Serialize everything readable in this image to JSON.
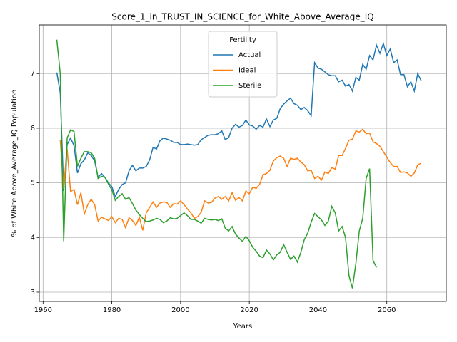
{
  "chart_data": {
    "type": "line",
    "title": "Score_1_in_TRUST_IN_SCIENCE_for_White_Above_Average_IQ",
    "x_label": "Years",
    "y_label": "% of White Above_Average_IQ Population",
    "x": [
      1964,
      1965,
      1966,
      1967,
      1968,
      1969,
      1970,
      1971,
      1972,
      1973,
      1974,
      1975,
      1976,
      1977,
      1978,
      1979,
      1980,
      1981,
      1982,
      1983,
      1984,
      1985,
      1986,
      1987,
      1988,
      1989,
      1990,
      1991,
      1992,
      1993,
      1994,
      1995,
      1996,
      1997,
      1998,
      1999,
      2000,
      2001,
      2002,
      2003,
      2004,
      2005,
      2006,
      2007,
      2008,
      2009,
      2010,
      2011,
      2012,
      2013,
      2014,
      2015,
      2016,
      2017,
      2018,
      2019,
      2020,
      2021,
      2022,
      2023,
      2024,
      2025,
      2026,
      2027,
      2028,
      2029,
      2030,
      2031,
      2032,
      2033,
      2034,
      2035,
      2036,
      2037,
      2038,
      2039,
      2040,
      2041,
      2042,
      2043,
      2044,
      2045,
      2046,
      2047,
      2048,
      2049,
      2050,
      2051,
      2052,
      2053,
      2054,
      2055,
      2056,
      2057,
      2058,
      2059,
      2060,
      2061,
      2062,
      2063,
      2064,
      2065,
      2066,
      2067,
      2068,
      2069,
      2070
    ],
    "series": [
      {
        "name": "Actual",
        "color": "#1f77b4",
        "values": [
          7.02,
          6.65,
          4.85,
          5.7,
          5.82,
          5.68,
          5.18,
          5.35,
          5.42,
          5.55,
          5.5,
          5.4,
          5.1,
          5.17,
          5.1,
          5.0,
          4.93,
          4.75,
          4.88,
          4.97,
          5.0,
          5.22,
          5.32,
          5.22,
          5.27,
          5.27,
          5.3,
          5.42,
          5.65,
          5.62,
          5.77,
          5.82,
          5.8,
          5.78,
          5.74,
          5.74,
          5.7,
          5.7,
          5.71,
          5.7,
          5.69,
          5.7,
          5.79,
          5.83,
          5.87,
          5.88,
          5.88,
          5.9,
          5.95,
          5.79,
          5.83,
          6.0,
          6.07,
          6.02,
          6.05,
          6.15,
          6.06,
          6.04,
          5.98,
          6.05,
          6.02,
          6.17,
          6.03,
          6.15,
          6.18,
          6.36,
          6.44,
          6.5,
          6.55,
          6.45,
          6.42,
          6.34,
          6.38,
          6.32,
          6.23,
          7.2,
          7.1,
          7.08,
          7.03,
          6.98,
          6.96,
          6.96,
          6.85,
          6.88,
          6.77,
          6.8,
          6.68,
          6.93,
          6.88,
          7.17,
          7.08,
          7.33,
          7.25,
          7.52,
          7.37,
          7.55,
          7.33,
          7.45,
          7.2,
          7.25,
          6.98,
          6.98,
          6.76,
          6.85,
          6.68,
          7.0,
          6.87
        ]
      },
      {
        "name": "Ideal",
        "color": "#ff7f0e",
        "values": [
          null,
          5.78,
          4.9,
          5.62,
          4.84,
          4.88,
          4.6,
          4.82,
          4.43,
          4.6,
          4.7,
          4.6,
          4.3,
          4.37,
          4.34,
          4.31,
          4.38,
          4.27,
          4.35,
          4.33,
          4.18,
          4.36,
          4.31,
          4.22,
          4.37,
          4.13,
          4.45,
          4.55,
          4.65,
          4.55,
          4.63,
          4.65,
          4.64,
          4.55,
          4.62,
          4.61,
          4.67,
          4.6,
          4.52,
          4.45,
          4.35,
          4.38,
          4.46,
          4.67,
          4.63,
          4.64,
          4.72,
          4.75,
          4.7,
          4.75,
          4.67,
          4.82,
          4.68,
          4.73,
          4.67,
          4.85,
          4.8,
          4.92,
          4.9,
          4.97,
          5.15,
          5.17,
          5.23,
          5.4,
          5.46,
          5.49,
          5.45,
          5.3,
          5.45,
          5.43,
          5.45,
          5.38,
          5.33,
          5.22,
          5.23,
          5.08,
          5.12,
          5.05,
          5.2,
          5.17,
          5.28,
          5.25,
          5.5,
          5.5,
          5.63,
          5.78,
          5.8,
          5.95,
          5.93,
          5.98,
          5.9,
          5.91,
          5.75,
          5.72,
          5.67,
          5.57,
          5.47,
          5.37,
          5.3,
          5.3,
          5.19,
          5.2,
          5.18,
          5.12,
          5.18,
          5.33,
          5.36
        ]
      },
      {
        "name": "Sterile",
        "color": "#2ca02c",
        "values": [
          7.62,
          7.0,
          3.93,
          5.82,
          5.97,
          5.94,
          5.3,
          5.45,
          5.57,
          5.57,
          5.55,
          5.45,
          5.08,
          5.12,
          5.1,
          4.98,
          4.87,
          4.68,
          4.75,
          4.8,
          4.7,
          4.73,
          4.62,
          4.5,
          4.42,
          4.35,
          4.29,
          4.3,
          4.32,
          4.35,
          4.33,
          4.27,
          4.3,
          4.36,
          4.34,
          4.35,
          4.4,
          4.45,
          4.4,
          4.33,
          4.33,
          4.3,
          4.26,
          4.35,
          4.33,
          4.32,
          4.33,
          4.31,
          4.34,
          4.17,
          4.12,
          4.2,
          4.06,
          3.99,
          3.93,
          4.02,
          3.94,
          3.82,
          3.75,
          3.66,
          3.63,
          3.77,
          3.7,
          3.59,
          3.68,
          3.73,
          3.87,
          3.73,
          3.6,
          3.66,
          3.55,
          3.73,
          3.96,
          4.08,
          4.28,
          4.44,
          4.38,
          4.32,
          4.22,
          4.3,
          4.57,
          4.45,
          4.12,
          4.2,
          4.0,
          3.3,
          3.07,
          3.52,
          4.12,
          4.35,
          5.08,
          5.26,
          3.58,
          3.45,
          null,
          null,
          null,
          null,
          null,
          null,
          null,
          null,
          null,
          null,
          null,
          null,
          null
        ]
      }
    ],
    "xlim": [
      1958.9,
      2077.3
    ],
    "xticks": [
      1960,
      1980,
      2000,
      2020,
      2040,
      2060
    ],
    "ylim": [
      2.83,
      7.89
    ],
    "yticks": [
      3,
      4,
      5,
      6,
      7
    ],
    "grid": true,
    "legend": {
      "title": "Fertility",
      "loc": "upper center"
    }
  }
}
